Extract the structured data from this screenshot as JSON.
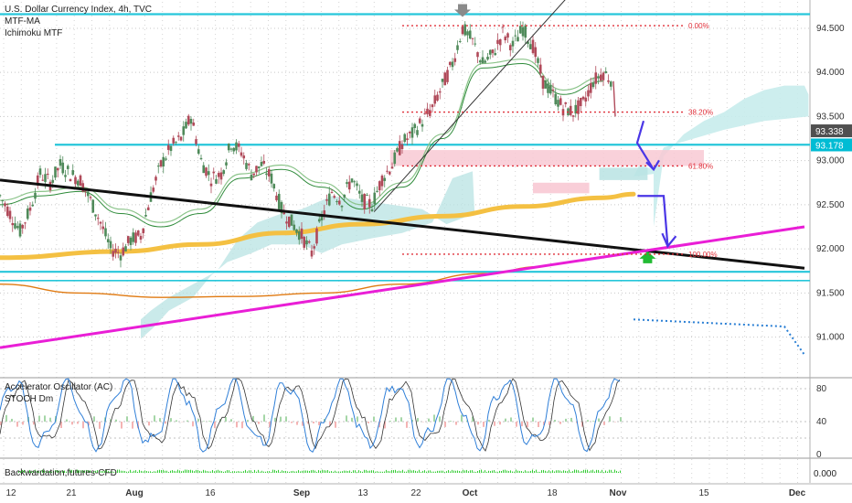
{
  "chart_data": {
    "type": "line",
    "title": "U.S. Dollar Currency Index, 4h, TVC",
    "indicators": [
      "MTF-MA",
      "Ichimoku MTF"
    ],
    "price_axis": {
      "ylim": [
        90.55,
        94.8
      ],
      "ticks": [
        "94.500",
        "94.000",
        "93.500",
        "93.000",
        "92.500",
        "92.000",
        "91.500",
        "91.000"
      ],
      "tick_values": [
        94.5,
        94.0,
        93.5,
        93.0,
        92.5,
        92.0,
        91.5,
        91.0
      ],
      "badges": [
        {
          "label": "93.338",
          "value": 93.338,
          "color": "#505050"
        },
        {
          "label": "93.178",
          "value": 93.178,
          "color": "#00bcd4"
        }
      ]
    },
    "time_axis": {
      "labels": [
        "12",
        "21",
        "Aug",
        "16",
        "Sep",
        "13",
        "22",
        "Oct",
        "18",
        "Nov",
        "15",
        "Dec"
      ],
      "bold": [
        "Aug",
        "Sep",
        "Oct",
        "Nov",
        "Dec"
      ]
    },
    "fibonacci": [
      {
        "label": "0.00%",
        "value": 94.53,
        "x_from": 20,
        "x_to": 34
      },
      {
        "label": "38.20%",
        "value": 93.55,
        "x_from": 20,
        "x_to": 34
      },
      {
        "label": "61.80%",
        "value": 92.94,
        "x_from": 20,
        "x_to": 34
      },
      {
        "label": "100.00%",
        "value": 91.94,
        "x_from": 20,
        "x_to": 34
      }
    ],
    "horizontal_levels": [
      {
        "value": 94.66,
        "color": "#26c6da"
      },
      {
        "value": 93.18,
        "color": "#26c6da"
      },
      {
        "value": 91.74,
        "color": "#26c6da"
      },
      {
        "value": 91.64,
        "color": "#26c6da"
      }
    ],
    "trendlines": [
      {
        "name": "black-trendline",
        "color": "#111111",
        "points": [
          [
            0,
            92.78
          ],
          [
            40,
            91.78
          ]
        ]
      },
      {
        "name": "magenta-trendline",
        "color": "#e91ed6",
        "points": [
          [
            0,
            90.88
          ],
          [
            40,
            92.25
          ]
        ]
      }
    ],
    "price_series": {
      "x": [
        0,
        0.5,
        1,
        1.5,
        2,
        2.5,
        3,
        3.5,
        4,
        4.5,
        5,
        5.5,
        6,
        6.5,
        7,
        7.5,
        8,
        8.5,
        9,
        9.5,
        10,
        10.5,
        11,
        11.5,
        12,
        12.5,
        13,
        13.5,
        14,
        14.5,
        15,
        15.5,
        16,
        16.5,
        17,
        17.5,
        18,
        18.5,
        19,
        19.5,
        20,
        20.5,
        21,
        21.5,
        22,
        22.5,
        23,
        23.5,
        24,
        24.5,
        25,
        25.5,
        26,
        26.5,
        27,
        27.5,
        28,
        28.5,
        29,
        29.5,
        30,
        30.5
      ],
      "values": [
        92.6,
        92.4,
        92.2,
        92.45,
        92.85,
        92.75,
        92.95,
        92.85,
        92.78,
        92.55,
        92.3,
        92.0,
        91.95,
        92.1,
        92.15,
        92.6,
        92.95,
        93.15,
        93.25,
        93.5,
        93.0,
        92.8,
        92.85,
        93.2,
        93.1,
        92.85,
        92.95,
        92.8,
        92.45,
        92.3,
        92.15,
        91.95,
        92.35,
        92.65,
        92.55,
        92.8,
        92.55,
        92.5,
        92.8,
        92.95,
        93.2,
        93.3,
        93.45,
        93.6,
        93.85,
        94.1,
        94.5,
        94.35,
        94.1,
        94.2,
        94.45,
        94.3,
        94.5,
        94.3,
        93.9,
        93.75,
        93.6,
        93.55,
        93.65,
        93.9,
        94.0,
        93.9
      ]
    },
    "ma_ribbon": {
      "x": [
        0,
        2,
        4,
        6,
        8,
        10,
        12,
        14,
        16,
        18,
        20,
        22,
        24,
        26,
        28,
        30
      ],
      "values": [
        92.55,
        92.65,
        92.7,
        92.45,
        92.3,
        92.45,
        92.85,
        92.95,
        92.75,
        92.5,
        92.75,
        93.3,
        94.1,
        94.15,
        93.8,
        93.95
      ]
    },
    "orange_ma": {
      "x": [
        0,
        6,
        10,
        14,
        18,
        22,
        26,
        30,
        31.5
      ],
      "values": [
        91.9,
        91.97,
        92.05,
        92.18,
        92.28,
        92.37,
        92.48,
        92.58,
        92.62
      ]
    },
    "brown_ma": {
      "x": [
        0,
        4,
        8,
        12,
        16,
        20,
        24,
        27
      ],
      "values": [
        91.6,
        91.5,
        91.45,
        91.46,
        91.5,
        91.6,
        91.72,
        91.8
      ]
    },
    "forecast_arrows": [
      {
        "from": [
          32,
          93.45
        ],
        "to": [
          32.5,
          92.9
        ]
      },
      {
        "from": [
          33,
          92.6
        ],
        "to": [
          34,
          92.05
        ]
      }
    ],
    "projection_dotted": {
      "points": [
        [
          31.5,
          91.2
        ],
        [
          39,
          91.12
        ],
        [
          40,
          90.8
        ]
      ]
    },
    "oscillators": {
      "labels": [
        "Accelerator Oscillator (AC)",
        "STOCH Dm"
      ],
      "ticks": [
        "80",
        "40",
        "0"
      ],
      "tick_values": [
        80,
        40,
        0
      ]
    },
    "bottom_indicator": {
      "label": "Backwardation,futures-CFD",
      "value_label": "0.000"
    }
  }
}
